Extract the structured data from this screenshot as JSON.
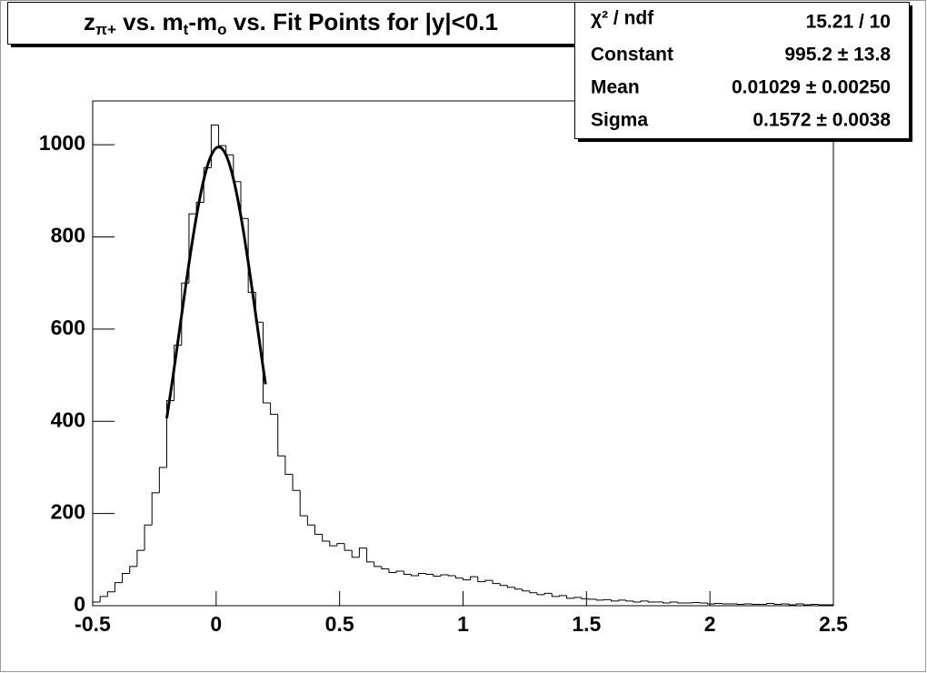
{
  "chart_data": {
    "type": "histogram",
    "title_parts": [
      {
        "text": "z"
      },
      {
        "text": "π+",
        "sub": true
      },
      {
        "text": " vs. m"
      },
      {
        "text": "t",
        "sub": true
      },
      {
        "text": "-m"
      },
      {
        "text": "o",
        "sub": true
      },
      {
        "text": " vs. Fit Points for |y|<0.1"
      }
    ],
    "bins": [
      -0.5,
      -0.47,
      -0.44,
      -0.41,
      -0.38,
      -0.35,
      -0.32,
      -0.29,
      -0.26,
      -0.23,
      -0.2,
      -0.17,
      -0.14,
      -0.11,
      -0.08,
      -0.05,
      -0.02,
      0.01,
      0.04,
      0.07,
      0.1,
      0.13,
      0.16,
      0.19,
      0.22,
      0.25,
      0.28,
      0.31,
      0.34,
      0.37,
      0.4,
      0.43,
      0.46,
      0.49,
      0.52,
      0.55,
      0.58,
      0.61,
      0.64,
      0.67,
      0.7,
      0.73,
      0.76,
      0.79,
      0.82,
      0.85,
      0.88,
      0.91,
      0.94,
      0.97,
      1.0,
      1.03,
      1.06,
      1.09,
      1.12,
      1.15,
      1.18,
      1.21,
      1.24,
      1.27,
      1.3,
      1.33,
      1.36,
      1.39,
      1.42,
      1.45,
      1.48,
      1.51,
      1.54,
      1.57,
      1.6,
      1.63,
      1.66,
      1.69,
      1.72,
      1.75,
      1.78,
      1.81,
      1.84,
      1.87,
      1.9,
      1.93,
      1.96,
      1.99,
      2.02,
      2.05,
      2.08,
      2.11,
      2.14,
      2.17,
      2.2,
      2.23,
      2.26,
      2.29,
      2.32,
      2.35,
      2.38,
      2.41,
      2.44,
      2.47,
      2.5
    ],
    "values": [
      8,
      20,
      30,
      50,
      70,
      85,
      120,
      175,
      245,
      300,
      445,
      565,
      700,
      850,
      875,
      950,
      1043,
      998,
      978,
      920,
      840,
      680,
      615,
      440,
      415,
      325,
      285,
      250,
      195,
      175,
      155,
      140,
      130,
      135,
      120,
      105,
      125,
      95,
      85,
      80,
      72,
      75,
      68,
      65,
      70,
      68,
      64,
      67,
      65,
      60,
      56,
      63,
      52,
      55,
      48,
      44,
      40,
      36,
      32,
      28,
      24,
      27,
      20,
      22,
      16,
      18,
      15,
      14,
      12,
      13,
      10,
      12,
      10,
      8,
      10,
      8,
      8,
      6,
      8,
      6,
      6,
      7,
      6,
      4,
      5,
      4,
      4,
      3,
      4,
      3,
      3,
      5,
      3,
      4,
      2,
      4,
      2,
      3,
      2,
      2
    ],
    "color": "#000000",
    "xlim": [
      -0.5,
      2.5
    ],
    "xticks": [
      -0.5,
      0,
      0.5,
      1,
      1.5,
      2,
      2.5
    ],
    "ylim": [
      0,
      1095
    ],
    "yticks": [
      0,
      200,
      400,
      600,
      800,
      1000
    ],
    "fit": {
      "function": "gaus",
      "constant": 995.2,
      "mean": 0.01029,
      "sigma": 0.1572,
      "xrange": [
        -0.2,
        0.2
      ]
    },
    "stats": [
      {
        "name": "χ² / ndf",
        "text": "15.21 / 10"
      },
      {
        "name": "Constant",
        "text": "995.2 ± 13.8"
      },
      {
        "name": "Mean",
        "text": "0.01029 ± 0.00250"
      },
      {
        "name": "Sigma",
        "text": "0.1572 ± 0.0038"
      }
    ]
  }
}
